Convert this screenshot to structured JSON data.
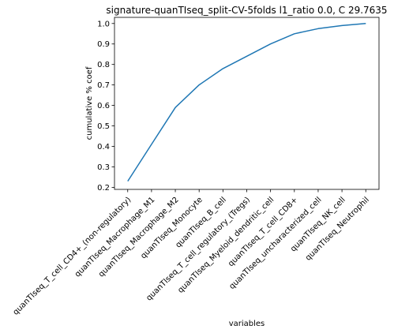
{
  "chart_data": {
    "type": "line",
    "title": "signature-quanTIseq_split-CV-5folds l1_ratio 0.0, C 29.7635",
    "xlabel": "variables",
    "ylabel": "cumulative % coef",
    "categories": [
      "quanTIseq_T_cell_CD4+_(non-regulatory)",
      "quanTIseq_Macrophage_M1",
      "quanTIseq_Macrophage_M2",
      "quanTIseq_Monocyte",
      "quanTIseq_B_cell",
      "quanTIseq_T_cell_regulatory_(Tregs)",
      "quanTIseq_Myeloid_dendritic_cell",
      "quanTIseq_T_cell_CD8+",
      "quanTIseq_uncharacterized_cell",
      "quanTIseq_NK_cell",
      "quanTIseq_Neutrophil"
    ],
    "series": [
      {
        "values": [
          0.23,
          0.41,
          0.59,
          0.7,
          0.78,
          0.84,
          0.9,
          0.95,
          0.975,
          0.99,
          1.0
        ]
      }
    ],
    "ylim": [
      0.19,
      1.03
    ],
    "yticks": [
      0.2,
      0.3,
      0.4,
      0.5,
      0.6,
      0.7,
      0.8,
      0.9,
      1.0
    ],
    "ytick_labels": [
      "0.2",
      "0.3",
      "0.4",
      "0.5",
      "0.6",
      "0.7",
      "0.8",
      "0.9",
      "1.0"
    ],
    "grid": false,
    "line_color": "#1f77b4"
  }
}
